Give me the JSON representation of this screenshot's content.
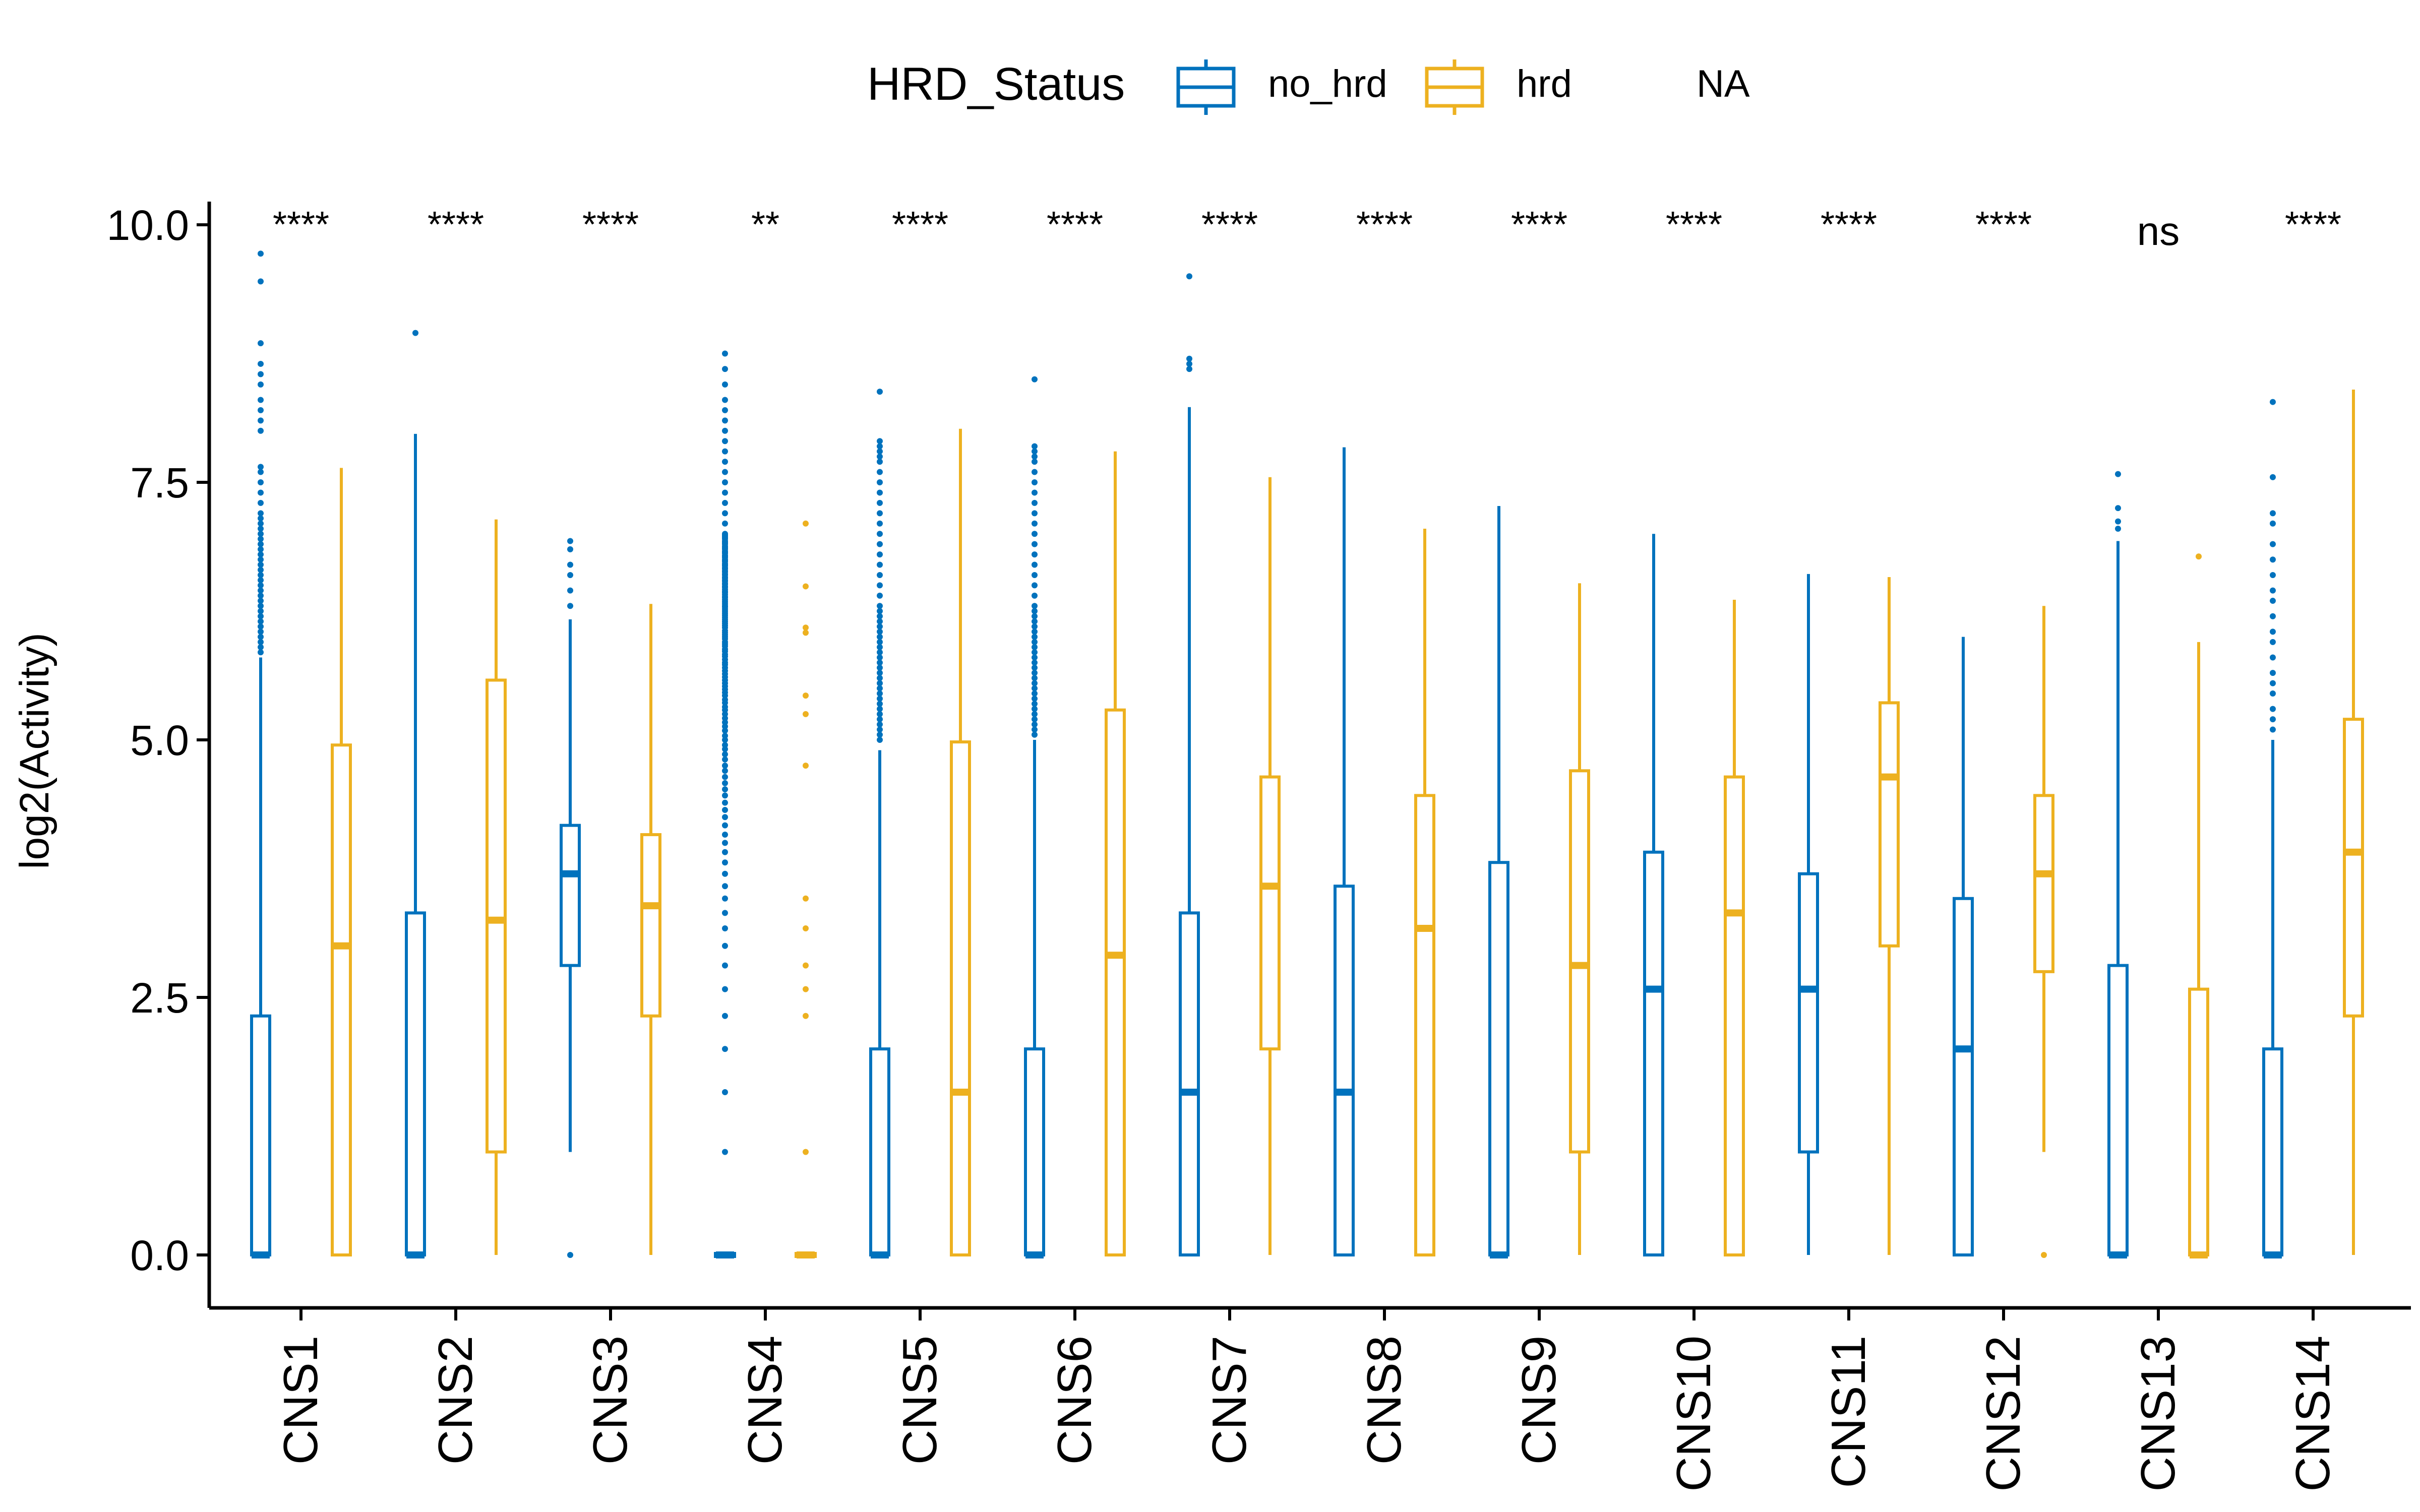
{
  "chart_data": {
    "type": "boxplot",
    "categories": [
      "CNS1",
      "CNS2",
      "CNS3",
      "CNS4",
      "CNS5",
      "CNS6",
      "CNS7",
      "CNS8",
      "CNS9",
      "CNS10",
      "CNS11",
      "CNS12",
      "CNS13",
      "CNS14"
    ],
    "ylabel": "log2(Activity)",
    "xlabel": "",
    "ylim": [
      -0.5,
      10.0
    ],
    "yticks": [
      0.0,
      2.5,
      5.0,
      7.5,
      10.0
    ],
    "ytick_labels": [
      "0.0",
      "2.5",
      "5.0",
      "7.5",
      "10.0"
    ],
    "grid": false,
    "legend": {
      "title": "HRD_Status",
      "position": "top",
      "entries": [
        {
          "label": "no_hrd",
          "color": "#0072BD"
        },
        {
          "label": "hrd",
          "color": "#EDB120"
        },
        {
          "label": "NA",
          "color": null
        }
      ]
    },
    "significance": [
      "****",
      "****",
      "****",
      "**",
      "****",
      "****",
      "****",
      "****",
      "****",
      "****",
      "****",
      "****",
      "ns",
      "****"
    ],
    "series": [
      {
        "name": "no_hrd",
        "color": "#0072BD",
        "boxes": [
          {
            "q1": 0,
            "median": 0,
            "q3": 2.32,
            "whisker_low": 0,
            "whisker_high": 5.8,
            "outliers": [
              5.85,
              5.9,
              5.95,
              6.0,
              6.05,
              6.1,
              6.15,
              6.2,
              6.25,
              6.3,
              6.35,
              6.4,
              6.45,
              6.5,
              6.55,
              6.6,
              6.65,
              6.7,
              6.75,
              6.8,
              6.85,
              6.9,
              6.95,
              7.0,
              7.05,
              7.1,
              7.15,
              7.2,
              7.3,
              7.4,
              7.5,
              7.6,
              7.65,
              8.0,
              8.1,
              8.2,
              8.3,
              8.45,
              8.55,
              8.65,
              8.85,
              9.45,
              9.72
            ]
          },
          {
            "q1": 0,
            "median": 0,
            "q3": 3.32,
            "whisker_low": 0,
            "whisker_high": 7.97,
            "outliers": [
              8.95
            ]
          },
          {
            "q1": 2.81,
            "median": 3.7,
            "q3": 4.17,
            "whisker_low": 1.0,
            "whisker_high": 6.17,
            "outliers": [
              0.0,
              6.3,
              6.45,
              6.6,
              6.7,
              6.85,
              6.93
            ]
          },
          {
            "q1": 0,
            "median": 0,
            "q3": 0,
            "whisker_low": 0,
            "whisker_high": 0,
            "outliers": [
              1.0,
              1.58,
              2.0,
              2.32,
              2.58,
              2.81,
              3.0,
              3.17,
              3.32,
              3.46,
              3.58,
              3.7,
              3.81,
              3.91,
              4.0,
              4.08,
              4.17,
              4.25,
              4.32,
              4.39,
              4.46,
              4.52,
              4.58,
              4.64,
              4.7,
              4.75,
              4.81,
              4.86,
              4.91,
              4.95,
              5.0,
              5.04,
              5.09,
              5.13,
              5.17,
              5.21,
              5.25,
              5.29,
              5.32,
              5.36,
              5.39,
              5.43,
              5.46,
              5.49,
              5.52,
              5.55,
              5.58,
              5.61,
              5.64,
              5.67,
              5.7,
              5.73,
              5.75,
              5.78,
              5.81,
              5.83,
              5.86,
              5.88,
              5.91,
              5.93,
              5.95,
              5.98,
              6.0,
              6.02,
              6.04,
              6.06,
              6.09,
              6.11,
              6.13,
              6.15,
              6.17,
              6.19,
              6.21,
              6.23,
              6.25,
              6.27,
              6.29,
              6.3,
              6.32,
              6.34,
              6.36,
              6.38,
              6.39,
              6.41,
              6.43,
              6.44,
              6.46,
              6.48,
              6.49,
              6.51,
              6.52,
              6.54,
              6.55,
              6.57,
              6.58,
              6.6,
              6.61,
              6.63,
              6.64,
              6.66,
              6.67,
              6.69,
              6.7,
              6.71,
              6.73,
              6.74,
              6.75,
              6.77,
              6.78,
              6.79,
              6.81,
              6.82,
              6.83,
              6.85,
              6.86,
              6.87,
              6.88,
              6.9,
              6.91,
              6.92,
              6.93,
              6.95,
              6.96,
              6.97,
              6.98,
              6.99,
              7.0,
              7.1,
              7.2,
              7.3,
              7.4,
              7.5,
              7.6,
              7.7,
              7.8,
              7.9,
              8.0,
              8.1,
              8.2,
              8.3,
              8.45,
              8.6,
              8.75
            ]
          },
          {
            "q1": 0,
            "median": 0,
            "q3": 2.0,
            "whisker_low": 0,
            "whisker_high": 4.9,
            "outliers": [
              5.0,
              5.05,
              5.1,
              5.15,
              5.2,
              5.25,
              5.3,
              5.35,
              5.4,
              5.45,
              5.5,
              5.55,
              5.6,
              5.65,
              5.7,
              5.75,
              5.8,
              5.85,
              5.9,
              5.95,
              6.0,
              6.05,
              6.1,
              6.15,
              6.2,
              6.25,
              6.3,
              6.4,
              6.5,
              6.6,
              6.7,
              6.8,
              6.9,
              7.0,
              7.1,
              7.2,
              7.3,
              7.4,
              7.5,
              7.6,
              7.7,
              7.75,
              7.8,
              7.85,
              7.9,
              8.38
            ]
          },
          {
            "q1": 0,
            "median": 0,
            "q3": 2.0,
            "whisker_low": 0,
            "whisker_high": 5.0,
            "outliers": [
              5.05,
              5.1,
              5.15,
              5.2,
              5.25,
              5.3,
              5.35,
              5.4,
              5.45,
              5.5,
              5.55,
              5.6,
              5.65,
              5.7,
              5.75,
              5.8,
              5.85,
              5.9,
              5.95,
              6.0,
              6.05,
              6.1,
              6.15,
              6.2,
              6.25,
              6.3,
              6.4,
              6.5,
              6.6,
              6.7,
              6.8,
              6.9,
              7.0,
              7.1,
              7.2,
              7.3,
              7.4,
              7.5,
              7.6,
              7.7,
              7.75,
              7.8,
              7.85,
              8.5
            ]
          },
          {
            "q1": 0,
            "median": 1.58,
            "q3": 3.32,
            "whisker_low": 0,
            "whisker_high": 8.23,
            "outliers": [
              8.6,
              8.65,
              8.7,
              9.5
            ]
          },
          {
            "q1": 0,
            "median": 1.58,
            "q3": 3.58,
            "whisker_low": 0,
            "whisker_high": 7.84,
            "outliers": []
          },
          {
            "q1": 0,
            "median": 0,
            "q3": 3.81,
            "whisker_low": 0,
            "whisker_high": 7.27,
            "outliers": []
          },
          {
            "q1": 0,
            "median": 2.58,
            "q3": 3.91,
            "whisker_low": 0,
            "whisker_high": 7.0,
            "outliers": []
          },
          {
            "q1": 1.0,
            "median": 2.58,
            "q3": 3.7,
            "whisker_low": 0,
            "whisker_high": 6.61,
            "outliers": []
          },
          {
            "q1": 0,
            "median": 2.0,
            "q3": 3.46,
            "whisker_low": 0,
            "whisker_high": 6.0,
            "outliers": []
          },
          {
            "q1": 0,
            "median": 0,
            "q3": 2.81,
            "whisker_low": 0,
            "whisker_high": 6.93,
            "outliers": [
              7.05,
              7.12,
              7.25,
              7.58
            ]
          },
          {
            "q1": 0,
            "median": 0,
            "q3": 2.0,
            "whisker_low": 0,
            "whisker_high": 5.0,
            "outliers": [
              5.1,
              5.2,
              5.3,
              5.45,
              5.55,
              5.65,
              5.8,
              5.95,
              6.05,
              6.2,
              6.35,
              6.45,
              6.6,
              6.75,
              6.9,
              7.1,
              7.2,
              7.55,
              8.28
            ]
          }
        ]
      },
      {
        "name": "hrd",
        "color": "#EDB120",
        "boxes": [
          {
            "q1": 0,
            "median": 3.0,
            "q3": 4.95,
            "whisker_low": 0,
            "whisker_high": 7.64,
            "outliers": []
          },
          {
            "q1": 1.0,
            "median": 3.25,
            "q3": 5.58,
            "whisker_low": 0,
            "whisker_high": 7.14,
            "outliers": []
          },
          {
            "q1": 2.32,
            "median": 3.39,
            "q3": 4.08,
            "whisker_low": 0,
            "whisker_high": 6.32,
            "outliers": []
          },
          {
            "q1": 0,
            "median": 0,
            "q3": 0,
            "whisker_low": 0,
            "whisker_high": 0,
            "outliers": [
              1.0,
              2.32,
              2.58,
              2.81,
              3.17,
              3.46,
              4.75,
              5.25,
              5.43,
              6.04,
              6.09,
              6.49,
              7.1
            ]
          },
          {
            "q1": 0,
            "median": 1.58,
            "q3": 4.98,
            "whisker_low": 0,
            "whisker_high": 8.02,
            "outliers": []
          },
          {
            "q1": 0,
            "median": 2.91,
            "q3": 5.29,
            "whisker_low": 0,
            "whisker_high": 7.8,
            "outliers": []
          },
          {
            "q1": 2.0,
            "median": 3.58,
            "q3": 4.64,
            "whisker_low": 0,
            "whisker_high": 7.55,
            "outliers": []
          },
          {
            "q1": 0,
            "median": 3.17,
            "q3": 4.46,
            "whisker_low": 0,
            "whisker_high": 7.05,
            "outliers": []
          },
          {
            "q1": 1.0,
            "median": 2.81,
            "q3": 4.7,
            "whisker_low": 0,
            "whisker_high": 6.52,
            "outliers": []
          },
          {
            "q1": 0,
            "median": 3.32,
            "q3": 4.64,
            "whisker_low": 0,
            "whisker_high": 6.36,
            "outliers": []
          },
          {
            "q1": 3.0,
            "median": 4.64,
            "q3": 5.36,
            "whisker_low": 0,
            "whisker_high": 6.58,
            "outliers": []
          },
          {
            "q1": 2.75,
            "median": 3.7,
            "q3": 4.46,
            "whisker_low": 1.0,
            "whisker_high": 6.3,
            "outliers": [
              0.0
            ]
          },
          {
            "q1": 0,
            "median": 0,
            "q3": 2.58,
            "whisker_low": 0,
            "whisker_high": 5.95,
            "outliers": [
              6.78
            ]
          },
          {
            "q1": 2.32,
            "median": 3.91,
            "q3": 5.2,
            "whisker_low": 0,
            "whisker_high": 8.4,
            "outliers": []
          }
        ]
      }
    ]
  }
}
